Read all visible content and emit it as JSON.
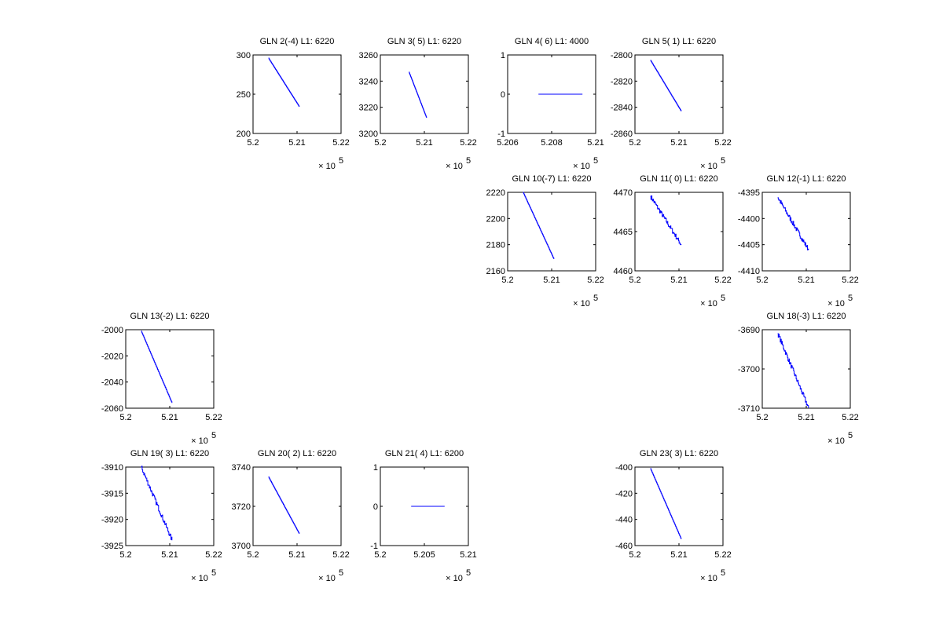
{
  "chart_data": {
    "type": "line",
    "x_exponent_label": "× 10",
    "x_exponent": "5",
    "line_color": "#0000ff",
    "subplots": [
      {
        "title": "GLN  2(-4) L1: 6220",
        "xlim": [
          5.2,
          5.22
        ],
        "xticks": [
          "5.2",
          "5.21",
          "5.22"
        ],
        "ylim": [
          200,
          300
        ],
        "yticks": [
          "200",
          "250",
          "300"
        ],
        "x": [
          5.2035,
          5.2105
        ],
        "y": [
          296,
          234
        ],
        "noisy": false
      },
      {
        "title": "GLN  3( 5) L1: 6220",
        "xlim": [
          5.2,
          5.22
        ],
        "xticks": [
          "5.2",
          "5.21",
          "5.22"
        ],
        "ylim": [
          3200,
          3260
        ],
        "yticks": [
          "3200",
          "3220",
          "3240",
          "3260"
        ],
        "x": [
          5.2065,
          5.2105
        ],
        "y": [
          3247,
          3212
        ],
        "noisy": false
      },
      {
        "title": "GLN  4( 6) L1: 4000",
        "xlim": [
          5.206,
          5.21
        ],
        "xticks": [
          "5.206",
          "5.208",
          "5.21"
        ],
        "ylim": [
          -1,
          1
        ],
        "yticks": [
          "-1",
          "0",
          "1"
        ],
        "x": [
          5.2074,
          5.2094
        ],
        "y": [
          0,
          0
        ],
        "noisy": false
      },
      {
        "title": "GLN  5( 1) L1: 6220",
        "xlim": [
          5.2,
          5.22
        ],
        "xticks": [
          "5.2",
          "5.21",
          "5.22"
        ],
        "ylim": [
          -2860,
          -2800
        ],
        "yticks": [
          "-2860",
          "-2840",
          "-2820",
          "-2800"
        ],
        "x": [
          5.2035,
          5.2105
        ],
        "y": [
          -2804,
          -2843
        ],
        "noisy": false
      },
      {
        "title": "GLN 10(-7) L1: 6220",
        "xlim": [
          5.2,
          5.22
        ],
        "xticks": [
          "5.2",
          "5.21",
          "5.22"
        ],
        "ylim": [
          2160,
          2220
        ],
        "yticks": [
          "2160",
          "2180",
          "2200",
          "2220"
        ],
        "x": [
          5.2035,
          5.2105
        ],
        "y": [
          2220,
          2169
        ],
        "noisy": false
      },
      {
        "title": "GLN 11( 0) L1: 6220",
        "xlim": [
          5.2,
          5.22
        ],
        "xticks": [
          "5.2",
          "5.21",
          "5.22"
        ],
        "ylim": [
          4460,
          4470
        ],
        "yticks": [
          "4460",
          "4465",
          "4470"
        ],
        "x": [
          5.2035,
          5.2105
        ],
        "y": [
          4469.5,
          4463.3
        ],
        "noisy": true
      },
      {
        "title": "GLN 12(-1) L1: 6220",
        "xlim": [
          5.2,
          5.22
        ],
        "xticks": [
          "5.2",
          "5.21",
          "5.22"
        ],
        "ylim": [
          -4410,
          -4395
        ],
        "yticks": [
          "-4410",
          "-4405",
          "-4400",
          "-4395"
        ],
        "x": [
          5.2035,
          5.2105
        ],
        "y": [
          -4396,
          -4406
        ],
        "noisy": true
      },
      {
        "title": "GLN 13(-2) L1: 6220",
        "xlim": [
          5.2,
          5.22
        ],
        "xticks": [
          "5.2",
          "5.21",
          "5.22"
        ],
        "ylim": [
          -2060,
          -2000
        ],
        "yticks": [
          "-2060",
          "-2040",
          "-2020",
          "-2000"
        ],
        "x": [
          5.2035,
          5.2105
        ],
        "y": [
          -2001,
          -2056
        ],
        "noisy": false
      },
      {
        "title": "GLN 18(-3) L1: 6220",
        "xlim": [
          5.2,
          5.22
        ],
        "xticks": [
          "5.2",
          "5.21",
          "5.22"
        ],
        "ylim": [
          -3710,
          -3690
        ],
        "yticks": [
          "-3710",
          "-3700",
          "-3690"
        ],
        "x": [
          5.2035,
          5.2105
        ],
        "y": [
          -3691,
          -3710
        ],
        "noisy": true
      },
      {
        "title": "GLN 19( 3) L1: 6220",
        "xlim": [
          5.2,
          5.22
        ],
        "xticks": [
          "5.2",
          "5.21",
          "5.22"
        ],
        "ylim": [
          -3925,
          -3910
        ],
        "yticks": [
          "-3925",
          "-3920",
          "-3915",
          "-3910"
        ],
        "x": [
          5.2035,
          5.2105
        ],
        "y": [
          -3910,
          -3924
        ],
        "noisy": true
      },
      {
        "title": "GLN 20( 2) L1: 6220",
        "xlim": [
          5.2,
          5.22
        ],
        "xticks": [
          "5.2",
          "5.21",
          "5.22"
        ],
        "ylim": [
          3700,
          3740
        ],
        "yticks": [
          "3700",
          "3720",
          "3740"
        ],
        "x": [
          5.2035,
          5.2105
        ],
        "y": [
          3735,
          3706
        ],
        "noisy": false
      },
      {
        "title": "GLN 21( 4) L1: 6200",
        "xlim": [
          5.2,
          5.21
        ],
        "xticks": [
          "5.2",
          "5.205",
          "5.21"
        ],
        "ylim": [
          -1,
          1
        ],
        "yticks": [
          "-1",
          "0",
          "1"
        ],
        "x": [
          5.2035,
          5.2073
        ],
        "y": [
          0,
          0
        ],
        "noisy": false
      },
      {
        "title": "GLN 23( 3) L1: 6220",
        "xlim": [
          5.2,
          5.22
        ],
        "xticks": [
          "5.2",
          "5.21",
          "5.22"
        ],
        "ylim": [
          -460,
          -400
        ],
        "yticks": [
          "-460",
          "-440",
          "-420",
          "-400"
        ],
        "x": [
          5.2035,
          5.2105
        ],
        "y": [
          -401,
          -455
        ],
        "noisy": false
      }
    ]
  }
}
